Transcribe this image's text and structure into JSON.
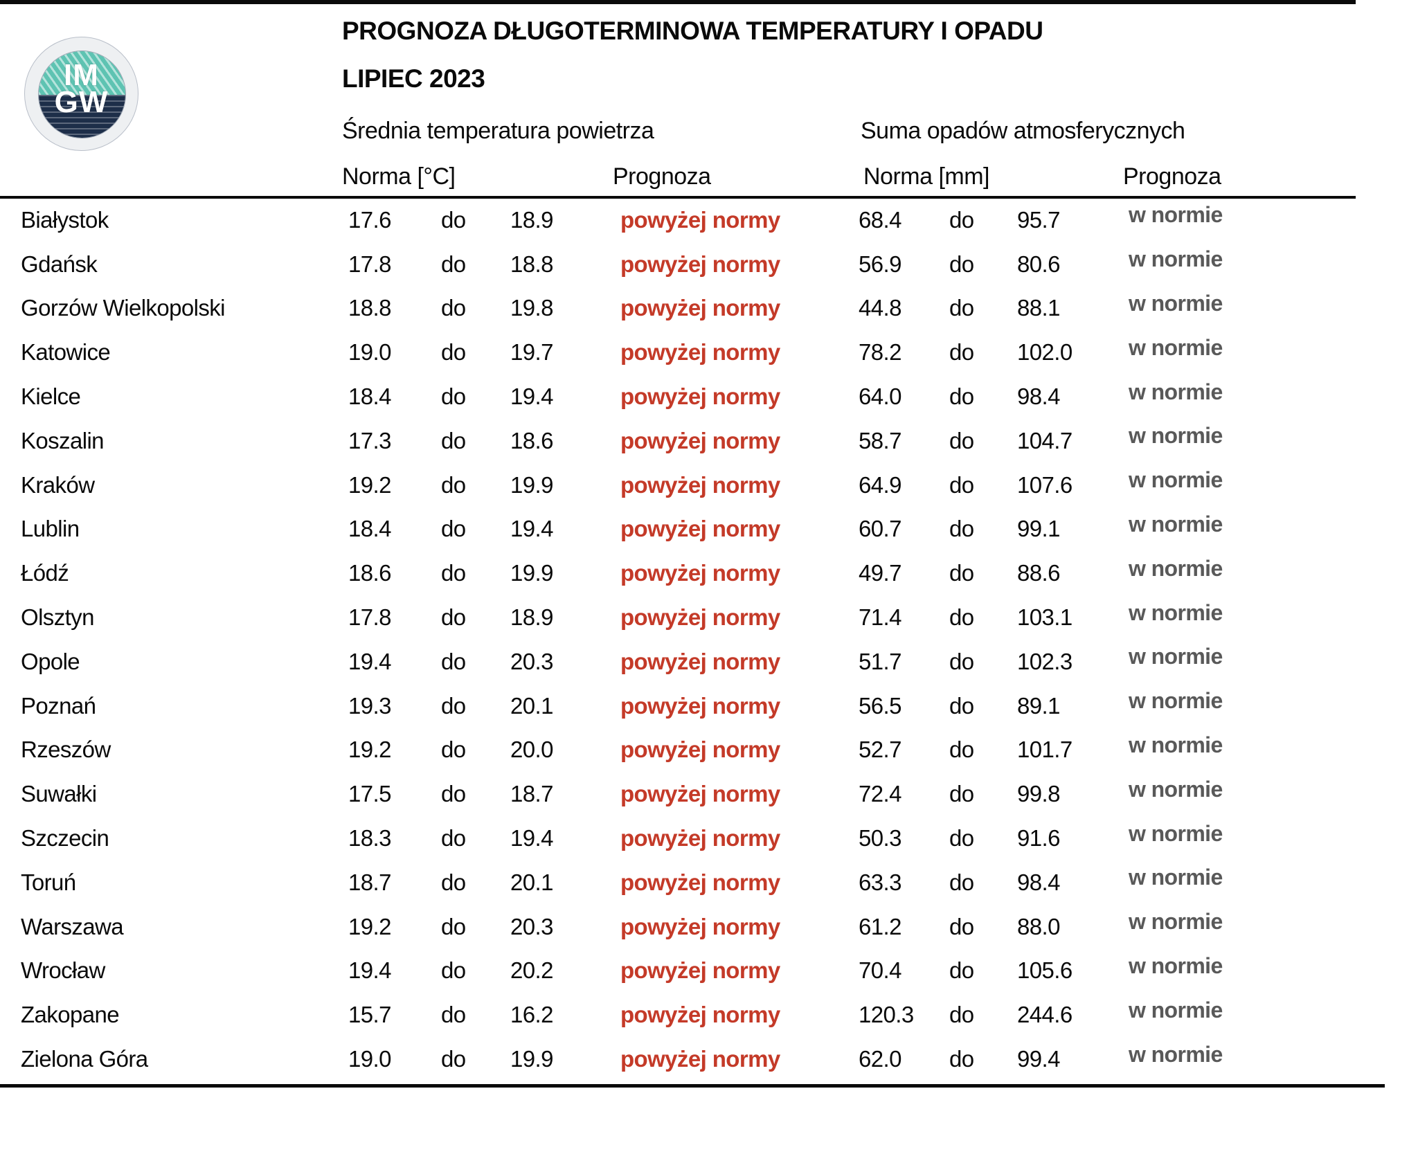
{
  "logo": {
    "line1": "IM",
    "line2": "GW"
  },
  "header": {
    "title": "PROGNOZA DŁUGOTERMINOWA TEMPERATURY I OPADU",
    "period": "LIPIEC 2023",
    "temp_section_title": "Średnia temperatura powietrza",
    "precip_section_title": "Suma opadów atmosferycznych",
    "temp_norm_label": "Norma [°C]",
    "temp_forecast_label": "Prognoza",
    "precip_norm_label": "Norma [mm]",
    "precip_forecast_label": "Prognoza"
  },
  "labels": {
    "range_separator": "do"
  },
  "colors": {
    "forecast_above_red": "#c43a28",
    "forecast_within_gray": "#595959",
    "logo_teal": "#5ec3b2",
    "logo_navy": "#1d2e49"
  },
  "rows": [
    {
      "city": "Białystok",
      "temp_min": "17.6",
      "temp_max": "18.9",
      "temp_forecast": "powyżej normy",
      "precip_min": "68.4",
      "precip_max": "95.7",
      "precip_forecast": "w normie"
    },
    {
      "city": "Gdańsk",
      "temp_min": "17.8",
      "temp_max": "18.8",
      "temp_forecast": "powyżej normy",
      "precip_min": "56.9",
      "precip_max": "80.6",
      "precip_forecast": "w normie"
    },
    {
      "city": "Gorzów Wielkopolski",
      "temp_min": "18.8",
      "temp_max": "19.8",
      "temp_forecast": "powyżej normy",
      "precip_min": "44.8",
      "precip_max": "88.1",
      "precip_forecast": "w normie"
    },
    {
      "city": "Katowice",
      "temp_min": "19.0",
      "temp_max": "19.7",
      "temp_forecast": "powyżej normy",
      "precip_min": "78.2",
      "precip_max": "102.0",
      "precip_forecast": "w normie"
    },
    {
      "city": "Kielce",
      "temp_min": "18.4",
      "temp_max": "19.4",
      "temp_forecast": "powyżej normy",
      "precip_min": "64.0",
      "precip_max": "98.4",
      "precip_forecast": "w normie"
    },
    {
      "city": "Koszalin",
      "temp_min": "17.3",
      "temp_max": "18.6",
      "temp_forecast": "powyżej normy",
      "precip_min": "58.7",
      "precip_max": "104.7",
      "precip_forecast": "w normie"
    },
    {
      "city": "Kraków",
      "temp_min": "19.2",
      "temp_max": "19.9",
      "temp_forecast": "powyżej normy",
      "precip_min": "64.9",
      "precip_max": "107.6",
      "precip_forecast": "w normie"
    },
    {
      "city": "Lublin",
      "temp_min": "18.4",
      "temp_max": "19.4",
      "temp_forecast": "powyżej normy",
      "precip_min": "60.7",
      "precip_max": "99.1",
      "precip_forecast": "w normie"
    },
    {
      "city": "Łódź",
      "temp_min": "18.6",
      "temp_max": "19.9",
      "temp_forecast": "powyżej normy",
      "precip_min": "49.7",
      "precip_max": "88.6",
      "precip_forecast": "w normie"
    },
    {
      "city": "Olsztyn",
      "temp_min": "17.8",
      "temp_max": "18.9",
      "temp_forecast": "powyżej normy",
      "precip_min": "71.4",
      "precip_max": "103.1",
      "precip_forecast": "w normie"
    },
    {
      "city": "Opole",
      "temp_min": "19.4",
      "temp_max": "20.3",
      "temp_forecast": "powyżej normy",
      "precip_min": "51.7",
      "precip_max": "102.3",
      "precip_forecast": "w normie"
    },
    {
      "city": "Poznań",
      "temp_min": "19.3",
      "temp_max": "20.1",
      "temp_forecast": "powyżej normy",
      "precip_min": "56.5",
      "precip_max": "89.1",
      "precip_forecast": "w normie"
    },
    {
      "city": "Rzeszów",
      "temp_min": "19.2",
      "temp_max": "20.0",
      "temp_forecast": "powyżej normy",
      "precip_min": "52.7",
      "precip_max": "101.7",
      "precip_forecast": "w normie"
    },
    {
      "city": "Suwałki",
      "temp_min": "17.5",
      "temp_max": "18.7",
      "temp_forecast": "powyżej normy",
      "precip_min": "72.4",
      "precip_max": "99.8",
      "precip_forecast": "w normie"
    },
    {
      "city": "Szczecin",
      "temp_min": "18.3",
      "temp_max": "19.4",
      "temp_forecast": "powyżej normy",
      "precip_min": "50.3",
      "precip_max": "91.6",
      "precip_forecast": "w normie"
    },
    {
      "city": "Toruń",
      "temp_min": "18.7",
      "temp_max": "20.1",
      "temp_forecast": "powyżej normy",
      "precip_min": "63.3",
      "precip_max": "98.4",
      "precip_forecast": "w normie"
    },
    {
      "city": "Warszawa",
      "temp_min": "19.2",
      "temp_max": "20.3",
      "temp_forecast": "powyżej normy",
      "precip_min": "61.2",
      "precip_max": "88.0",
      "precip_forecast": "w normie"
    },
    {
      "city": "Wrocław",
      "temp_min": "19.4",
      "temp_max": "20.2",
      "temp_forecast": "powyżej normy",
      "precip_min": "70.4",
      "precip_max": "105.6",
      "precip_forecast": "w normie"
    },
    {
      "city": "Zakopane",
      "temp_min": "15.7",
      "temp_max": "16.2",
      "temp_forecast": "powyżej normy",
      "precip_min": "120.3",
      "precip_max": "244.6",
      "precip_forecast": "w normie"
    },
    {
      "city": "Zielona Góra",
      "temp_min": "19.0",
      "temp_max": "19.9",
      "temp_forecast": "powyżej normy",
      "precip_min": "62.0",
      "precip_max": "99.4",
      "precip_forecast": "w normie"
    }
  ]
}
